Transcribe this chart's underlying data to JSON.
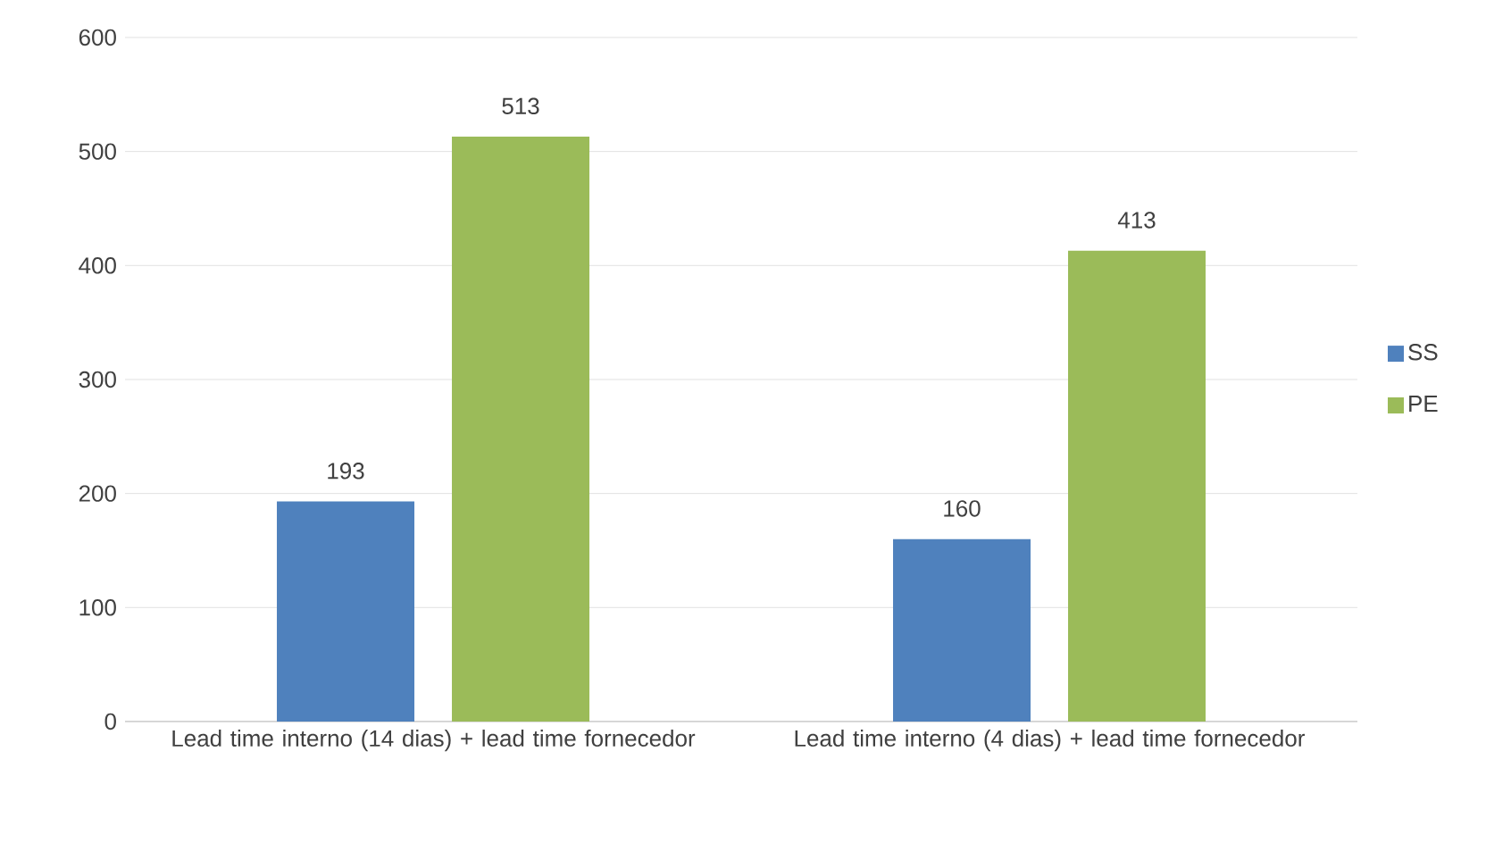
{
  "chart_data": {
    "type": "bar",
    "categories": [
      "Lead time interno (14 dias) + lead time fornecedor",
      "Lead time interno (4 dias) + lead time fornecedor"
    ],
    "series": [
      {
        "name": "SS",
        "color": "#4f81bd",
        "values": [
          193,
          160
        ]
      },
      {
        "name": "PE",
        "color": "#9bbb59",
        "values": [
          513,
          413
        ]
      }
    ],
    "ylim": [
      0,
      600
    ],
    "yticks": [
      0,
      100,
      200,
      300,
      400,
      500,
      600
    ],
    "grid": "y",
    "legend": "right",
    "data_labels": true
  }
}
